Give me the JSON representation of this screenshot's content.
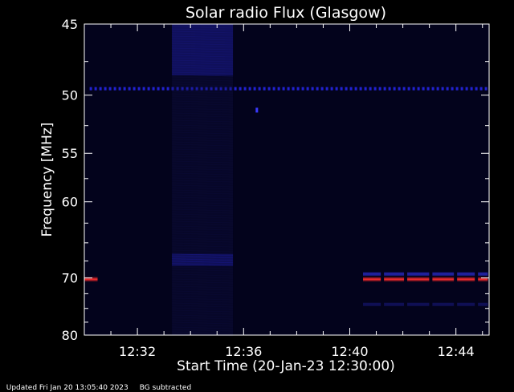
{
  "chart_data": {
    "type": "heatmap",
    "title": "Solar radio Flux (Glasgow)",
    "xlabel": "Start Time (20-Jan-23 12:30:00)",
    "ylabel": "Frequency [MHz]",
    "x_unit": "minutes after 12:30",
    "xlim": [
      0,
      15.25
    ],
    "ylim": [
      45,
      80
    ],
    "x_ticks": [
      {
        "value": 2,
        "label": "12:32"
      },
      {
        "value": 6,
        "label": "12:36"
      },
      {
        "value": 10,
        "label": "12:40"
      },
      {
        "value": 14,
        "label": "12:44"
      }
    ],
    "y_ticks": [
      {
        "value": 45,
        "label": "45"
      },
      {
        "value": 50,
        "label": "50"
      },
      {
        "value": 55,
        "label": "55"
      },
      {
        "value": 60,
        "label": "60"
      },
      {
        "value": 70,
        "label": "70"
      },
      {
        "value": 80,
        "label": "80"
      }
    ],
    "features": [
      {
        "kind": "band",
        "freq": 49.5,
        "t_start": 0.2,
        "t_end": 15.2,
        "color": "#2a2aff",
        "intensity": 0.8,
        "dotted": true
      },
      {
        "kind": "band",
        "freq": 70.2,
        "t_start": 0.0,
        "t_end": 0.5,
        "color": "#ff2020",
        "intensity": 1.0,
        "dotted": false
      },
      {
        "kind": "band",
        "freq": 70.2,
        "t_start": 10.5,
        "t_end": 15.2,
        "color": "#ff2020",
        "intensity": 1.0,
        "dotted": false
      },
      {
        "kind": "band",
        "freq": 69.4,
        "t_start": 10.5,
        "t_end": 15.2,
        "color": "#3333ee",
        "intensity": 0.6,
        "dotted": false
      },
      {
        "kind": "band",
        "freq": 74.3,
        "t_start": 10.5,
        "t_end": 15.2,
        "color": "#2222aa",
        "intensity": 0.4,
        "dotted": false
      },
      {
        "kind": "block",
        "freq_start": 45,
        "freq_end": 48.5,
        "t_start": 3.3,
        "t_end": 5.6,
        "color": "#2424c8",
        "intensity": 0.7
      },
      {
        "kind": "block",
        "freq_start": 66.5,
        "freq_end": 68.2,
        "t_start": 3.3,
        "t_end": 5.6,
        "color": "#2424c8",
        "intensity": 0.7
      },
      {
        "kind": "block",
        "freq_start": 45,
        "freq_end": 80,
        "t_start": 3.3,
        "t_end": 5.6,
        "color": "#10104a",
        "intensity": 0.5
      },
      {
        "kind": "spot",
        "freq": 51.2,
        "t": 6.5,
        "color": "#3a3aff",
        "intensity": 1.0
      }
    ]
  },
  "footer": {
    "updated": "Updated Fri Jan 20 13:05:40 2023",
    "note": "BG subtracted"
  }
}
